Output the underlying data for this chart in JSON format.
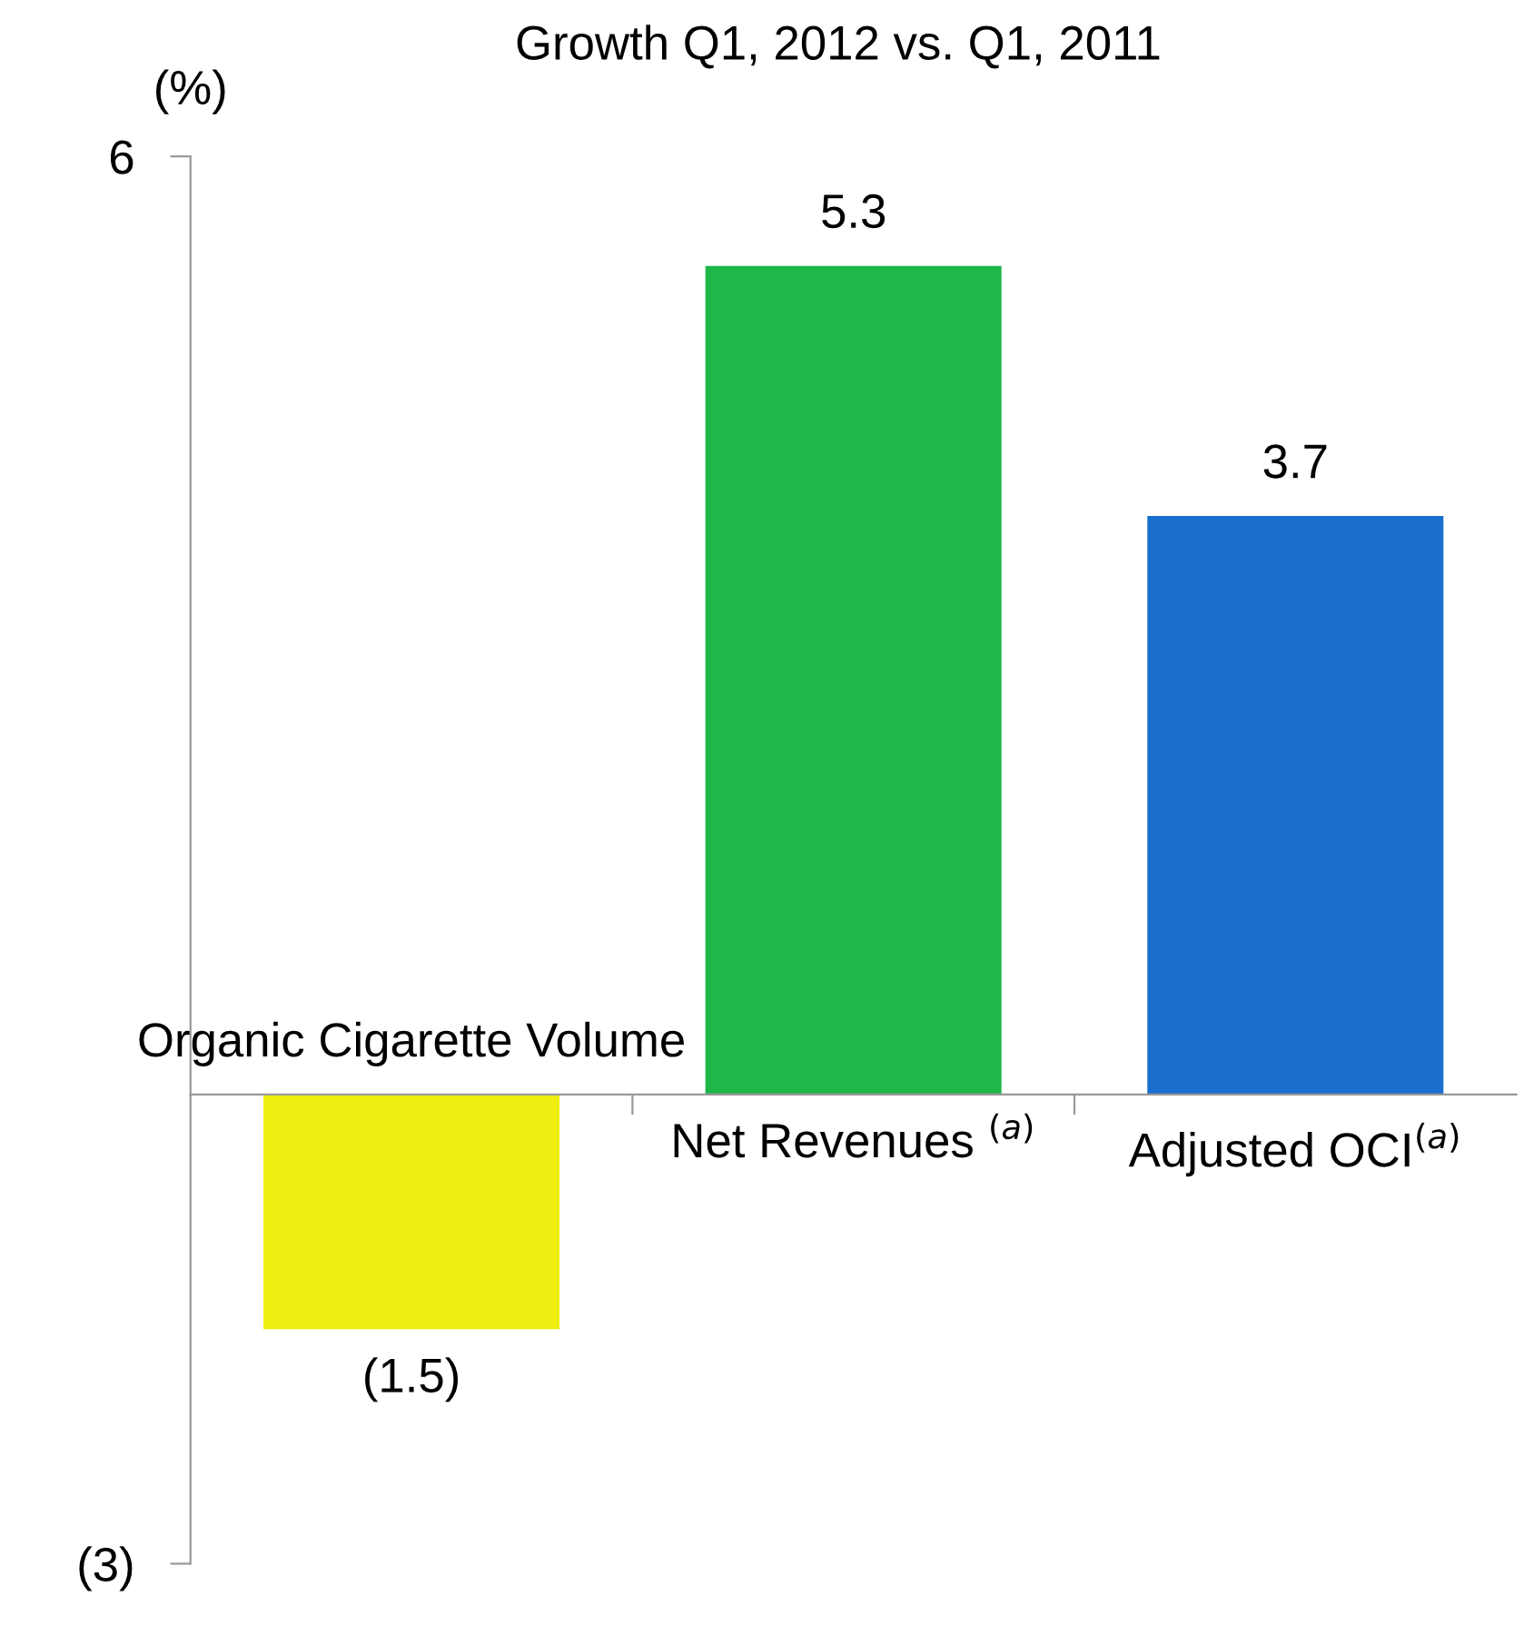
{
  "chart_data": {
    "type": "bar",
    "title": "Growth Q1, 2012 vs. Q1, 2011",
    "ylabel": "(%)",
    "categories": [
      "Organic Cigarette Volume",
      "Net Revenues $^{(a)}$",
      "Adjusted OCI$^{(a)}$"
    ],
    "values": [
      -1.5,
      5.3,
      3.7
    ],
    "value_labels": [
      "(1.5)",
      "5.3",
      "3.7"
    ],
    "colors": [
      "#eeee10",
      "#1fb64a",
      "#1b6fcc"
    ],
    "ylim": [
      -3,
      6
    ],
    "yticks": [
      {
        "value": -3,
        "label": "(3)"
      },
      6
    ],
    "grid": false,
    "legend": false
  }
}
